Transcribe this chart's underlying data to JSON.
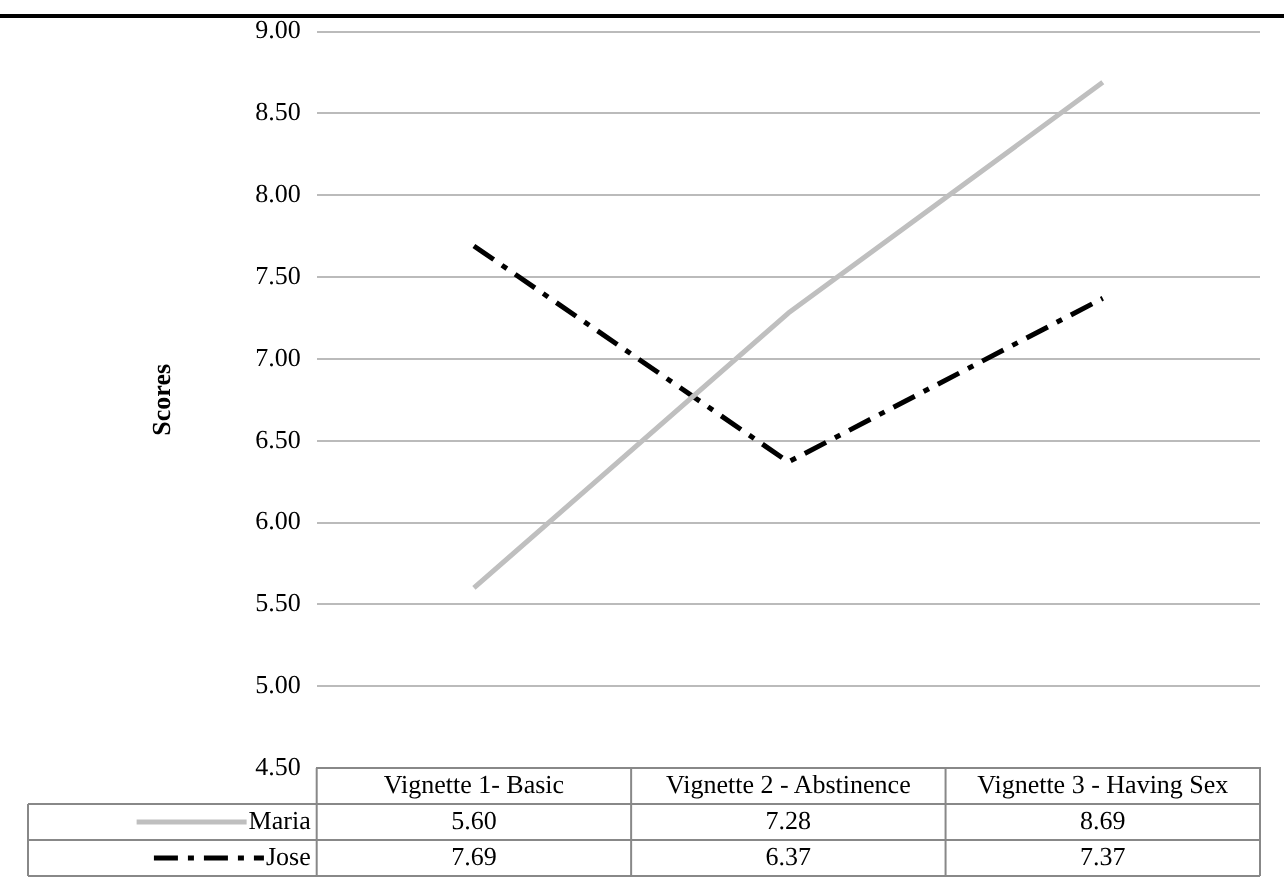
{
  "chart_data": {
    "type": "line",
    "ylabel": "Scores",
    "categories": [
      "Vignette 1- Basic",
      "Vignette 2 - Abstinence",
      "Vignette 3 - Having Sex"
    ],
    "series": [
      {
        "name": "Maria",
        "color": "#bfbfbf",
        "line_style": "solid",
        "values": [
          5.6,
          7.28,
          8.69
        ],
        "value_labels": [
          "5.60",
          "7.28",
          "8.69"
        ]
      },
      {
        "name": "Jose",
        "color": "#000000",
        "line_style": "dashed",
        "values": [
          7.69,
          6.37,
          7.37
        ],
        "value_labels": [
          "7.69",
          "6.37",
          "7.37"
        ]
      }
    ],
    "ylim": [
      4.5,
      9.0
    ],
    "yticks": [
      {
        "value": 4.5,
        "label": "4.50"
      },
      {
        "value": 5.0,
        "label": "5.00"
      },
      {
        "value": 5.5,
        "label": "5.50"
      },
      {
        "value": 6.0,
        "label": "6.00"
      },
      {
        "value": 6.5,
        "label": "6.50"
      },
      {
        "value": 7.0,
        "label": "7.00"
      },
      {
        "value": 7.5,
        "label": "7.50"
      },
      {
        "value": 8.0,
        "label": "8.00"
      },
      {
        "value": 8.5,
        "label": "8.50"
      },
      {
        "value": 9.0,
        "label": "9.00"
      }
    ],
    "grid": "y",
    "marker": "none",
    "legend": "bottom"
  }
}
